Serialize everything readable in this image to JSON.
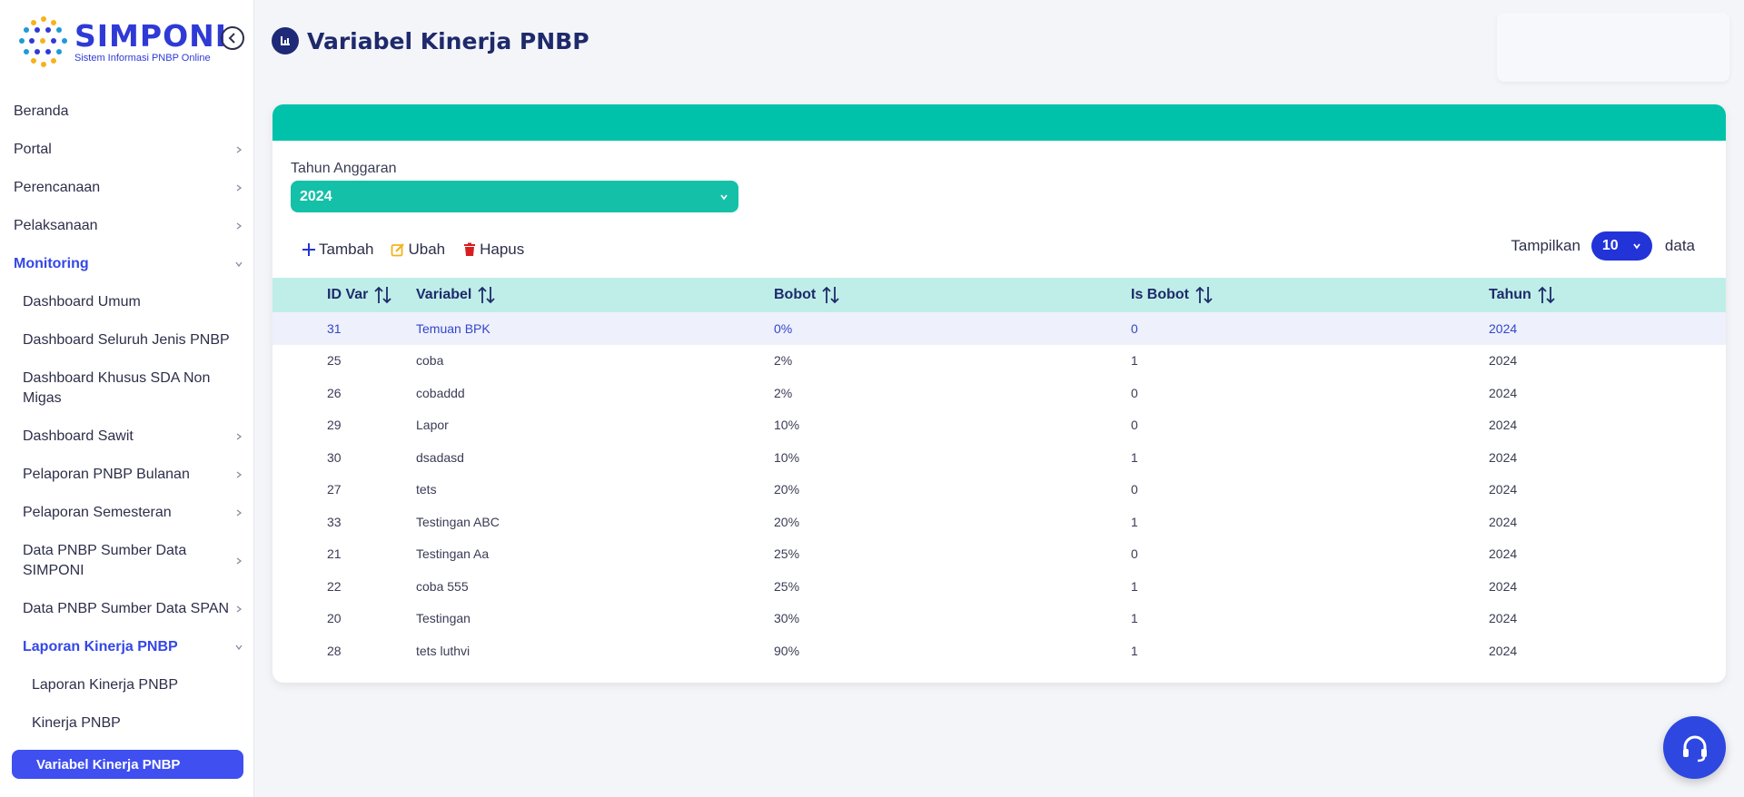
{
  "app": {
    "logo_title": "SIMPONI",
    "logo_subtitle": "Sistem Informasi PNBP Online"
  },
  "sidebar": {
    "items": [
      {
        "label": "Beranda"
      },
      {
        "label": "Portal"
      },
      {
        "label": "Perencanaan"
      },
      {
        "label": "Pelaksanaan"
      },
      {
        "label": "Monitoring"
      },
      {
        "label": "Dashboard Umum"
      },
      {
        "label": "Dashboard Seluruh Jenis PNBP"
      },
      {
        "label": "Dashboard Khusus SDA Non Migas"
      },
      {
        "label": "Dashboard Sawit"
      },
      {
        "label": "Pelaporan PNBP Bulanan"
      },
      {
        "label": "Pelaporan Semesteran"
      },
      {
        "label": "Data PNBP Sumber Data SIMPONI"
      },
      {
        "label": "Data PNBP Sumber Data SPAN"
      },
      {
        "label": "Laporan Kinerja PNBP"
      },
      {
        "label": "Laporan Kinerja PNBP"
      },
      {
        "label": "Kinerja PNBP"
      },
      {
        "label": "Variabel Kinerja PNBP"
      }
    ]
  },
  "header": {
    "title": "Variabel Kinerja PNBP"
  },
  "filter": {
    "year_label": "Tahun Anggaran",
    "year_value": "2024"
  },
  "toolbar": {
    "add_label": "Tambah",
    "edit_label": "Ubah",
    "delete_label": "Hapus",
    "show_label": "Tampilkan",
    "show_value": "10",
    "show_suffix": "data"
  },
  "table": {
    "columns": [
      "ID Var",
      "Variabel",
      "Bobot",
      "Is Bobot",
      "Tahun"
    ],
    "rows": [
      [
        "31",
        "Temuan BPK",
        "0%",
        "0",
        "2024"
      ],
      [
        "25",
        "coba",
        "2%",
        "1",
        "2024"
      ],
      [
        "26",
        "cobaddd",
        "2%",
        "0",
        "2024"
      ],
      [
        "29",
        "Lapor",
        "10%",
        "0",
        "2024"
      ],
      [
        "30",
        "dsadasd",
        "10%",
        "1",
        "2024"
      ],
      [
        "27",
        "tets",
        "20%",
        "0",
        "2024"
      ],
      [
        "33",
        "Testingan ABC",
        "20%",
        "1",
        "2024"
      ],
      [
        "21",
        "Testingan Aa",
        "25%",
        "0",
        "2024"
      ],
      [
        "22",
        "coba 555",
        "25%",
        "1",
        "2024"
      ],
      [
        "20",
        "Testingan",
        "30%",
        "1",
        "2024"
      ],
      [
        "28",
        "tets luthvi",
        "90%",
        "1",
        "2024"
      ]
    ]
  },
  "colors": {
    "brand": "#2f3ad6",
    "teal": "#00c2aa",
    "active_menu": "#3f4ff0",
    "table_header": "#bfeee8"
  }
}
